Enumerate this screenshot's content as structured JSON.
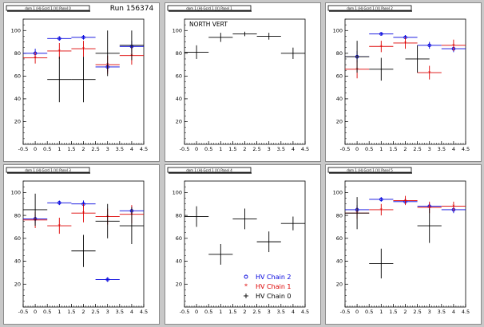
{
  "run_label": "Run 156374",
  "axis": {
    "xlim": [
      -0.5,
      4.5
    ],
    "ylim": [
      0,
      110
    ],
    "xticks": [
      "-0.5",
      "0",
      "0.5",
      "1",
      "1.5",
      "2",
      "2.5",
      "3",
      "3.5",
      "4",
      "4.5"
    ],
    "yticks": [
      "20",
      "40",
      "60",
      "80",
      "100"
    ]
  },
  "colors": {
    "chain2": "#0000dd",
    "chain1": "#dd0000",
    "chain0": "#000000"
  },
  "legend": [
    {
      "label": "HV Chain 2",
      "series": "chain2",
      "marker": "circle"
    },
    {
      "label": "HV Chain 1",
      "series": "chain1",
      "marker": "star"
    },
    {
      "label": "HV Chain 0",
      "series": "chain0",
      "marker": "cross"
    }
  ],
  "chart_data": [
    {
      "type": "scatter",
      "title": "dom 1 (H)·Gcrd 1 (V) Panel 0",
      "label": "",
      "series": [
        {
          "key": "chain2",
          "x": [
            0,
            1,
            2,
            3,
            4
          ],
          "y": [
            80,
            93,
            94,
            68,
            86
          ],
          "yerr": [
            4,
            2,
            2,
            4,
            5
          ]
        },
        {
          "key": "chain1",
          "x": [
            0,
            1,
            2,
            3,
            4
          ],
          "y": [
            76,
            82,
            84,
            70,
            78
          ],
          "yerr": [
            5,
            7,
            7,
            8,
            8
          ]
        },
        {
          "key": "chain0",
          "x": [
            1,
            2,
            3,
            4
          ],
          "y": [
            57,
            57,
            80,
            87
          ],
          "yerr": [
            20,
            20,
            20,
            13
          ]
        }
      ]
    },
    {
      "type": "scatter",
      "title": "dom 1 (H)·Gcrd 1 (V) Panel 1",
      "label": "NORTH VERT",
      "series": [
        {
          "key": "chain0",
          "x": [
            0,
            1,
            2,
            3,
            4
          ],
          "y": [
            81,
            94,
            97,
            95,
            80
          ],
          "yerr": [
            6,
            4,
            2,
            3,
            5
          ]
        }
      ]
    },
    {
      "type": "scatter",
      "title": "dom 1 (H)·Gcrd 1 (V) Panel 2",
      "label": "",
      "series": [
        {
          "key": "chain2",
          "x": [
            0,
            1,
            2,
            3,
            4
          ],
          "y": [
            77,
            97,
            94,
            87,
            84
          ],
          "yerr": [
            5,
            1,
            2,
            3,
            3
          ]
        },
        {
          "key": "chain1",
          "x": [
            0,
            1,
            2,
            3,
            4
          ],
          "y": [
            66,
            86,
            89,
            63,
            87
          ],
          "yerr": [
            8,
            5,
            5,
            6,
            5
          ]
        },
        {
          "key": "chain0",
          "x": [
            0,
            1,
            2.5
          ],
          "y": [
            77,
            66,
            75
          ],
          "yerr": [
            14,
            10,
            12
          ]
        }
      ]
    },
    {
      "type": "scatter",
      "title": "dom 1 (H)·Gcrd 1 (V) Panel 3",
      "label": "",
      "series": [
        {
          "key": "chain2",
          "x": [
            0,
            1,
            2,
            3,
            4
          ],
          "y": [
            77,
            91,
            90,
            24,
            84
          ],
          "yerr": [
            4,
            2,
            3,
            2,
            4
          ]
        },
        {
          "key": "chain1",
          "x": [
            0,
            1,
            2,
            3,
            4
          ],
          "y": [
            76,
            71,
            82,
            79,
            81
          ],
          "yerr": [
            7,
            7,
            8,
            7,
            8
          ]
        },
        {
          "key": "chain0",
          "x": [
            0,
            2,
            3,
            4
          ],
          "y": [
            85,
            49,
            75,
            71
          ],
          "yerr": [
            14,
            14,
            15,
            16
          ]
        }
      ]
    },
    {
      "type": "scatter",
      "title": "dom 1 (H)·Gcrd 1 (V) Panel 4",
      "label": "",
      "series": [
        {
          "key": "chain0",
          "x": [
            0,
            1,
            2,
            3,
            4
          ],
          "y": [
            79,
            46,
            77,
            57,
            73
          ],
          "yerr": [
            9,
            9,
            9,
            9,
            6
          ]
        }
      ]
    },
    {
      "type": "scatter",
      "title": "dom 1 (H)·Gcrd 1 (V) Panel 5",
      "label": "",
      "series": [
        {
          "key": "chain2",
          "x": [
            0,
            1,
            2,
            3,
            4
          ],
          "y": [
            85,
            94,
            92,
            88,
            85
          ],
          "yerr": [
            4,
            2,
            2,
            3,
            3
          ]
        },
        {
          "key": "chain1",
          "x": [
            0,
            1,
            2,
            3,
            4
          ],
          "y": [
            82,
            85,
            93,
            87,
            88
          ],
          "yerr": [
            5,
            5,
            4,
            5,
            4
          ]
        },
        {
          "key": "chain0",
          "x": [
            0,
            1,
            3
          ],
          "y": [
            82,
            38,
            71
          ],
          "yerr": [
            14,
            13,
            15
          ]
        }
      ]
    }
  ]
}
